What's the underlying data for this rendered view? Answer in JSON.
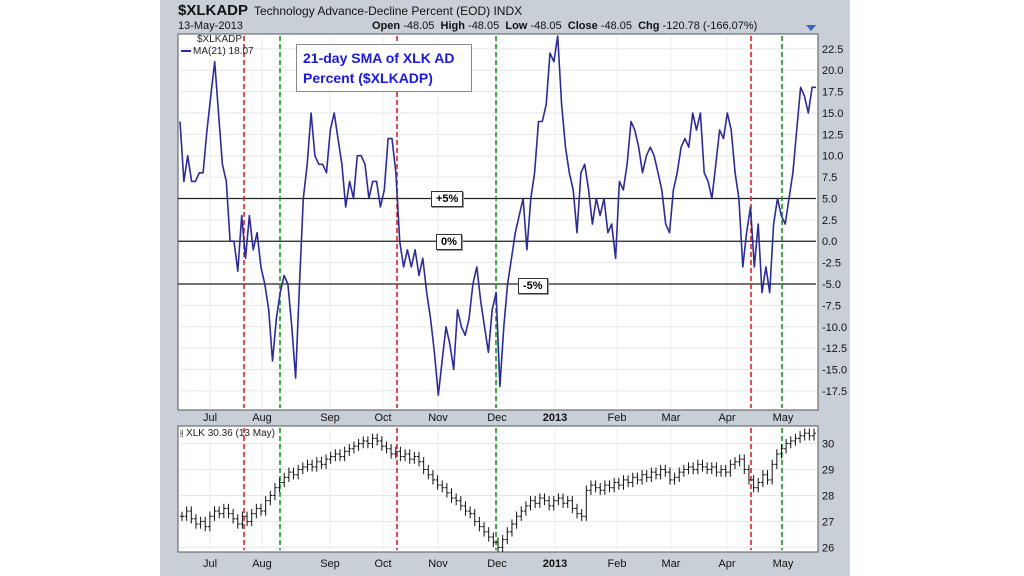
{
  "header": {
    "symbol": "$XLKADP",
    "description": "Technology Advance-Decline Percent (EOD)",
    "exchange": "INDX",
    "date": "13-May-2013",
    "open_label": "Open",
    "open": "-48.05",
    "high_label": "High",
    "high": "-48.05",
    "low_label": "Low",
    "low": "-48.05",
    "close_label": "Close",
    "close": "-48.05",
    "chg_label": "Chg",
    "chg": "-120.78 (-166.07%)"
  },
  "annotation": {
    "line1": "21-day SMA of XLK AD",
    "line2": "Percent ($XLKADP)"
  },
  "legend": {
    "main_symbol": "$XLKADP",
    "main_series": "MA(21) 18.07",
    "lower_series": "XLK 30.36 (13 May)"
  },
  "colors": {
    "line": "#2b2b9a",
    "red_marker": "#e02020",
    "green_marker": "#1a9a1a",
    "panel_bg": "#ffffff",
    "frame": "#c9cfd6"
  },
  "chart_data": [
    {
      "type": "line",
      "name": "upper",
      "x_ticks": [
        "Jul",
        "Aug",
        "Sep",
        "Oct",
        "Nov",
        "Dec",
        "2013",
        "Feb",
        "Mar",
        "Apr",
        "May"
      ],
      "y_ticks": [
        "22.5",
        "20.0",
        "17.5",
        "15.0",
        "12.5",
        "10.0",
        "7.5",
        "5.0",
        "2.5",
        "0.0",
        "-2.5",
        "-5.0",
        "-7.5",
        "-10.0",
        "-12.5",
        "-15.0",
        "-17.5"
      ],
      "ylim": [
        -19.5,
        24.0
      ],
      "reference_lines": [
        {
          "value": 5,
          "label": "+5%"
        },
        {
          "value": 0,
          "label": "0%"
        },
        {
          "value": -5,
          "label": "-5%"
        }
      ],
      "series": [
        {
          "name": "MA(21) 18.07",
          "values": [
            14,
            7,
            10,
            7,
            7,
            8,
            8,
            13,
            17,
            21,
            15,
            9,
            7,
            0,
            0,
            -3.5,
            3,
            -2,
            3,
            -1,
            1,
            -3,
            -5,
            -8,
            -14,
            -9,
            -6,
            -4,
            -5,
            -10,
            -16,
            -5,
            5,
            9,
            15,
            10,
            9,
            9,
            8,
            13,
            15,
            12,
            9,
            4,
            7,
            5,
            10,
            10,
            9,
            5,
            7,
            7,
            4,
            6,
            12,
            12,
            8,
            0,
            -3,
            -1,
            -3,
            -1,
            -4,
            -2,
            -6,
            -9,
            -13,
            -18,
            -14,
            -10,
            -12,
            -15,
            -8,
            -10,
            -11,
            -9,
            -5,
            -3,
            -7,
            -10,
            -13,
            -8,
            -6,
            -17,
            -10,
            -5,
            -2,
            1,
            3,
            5,
            -1,
            5,
            8,
            14,
            14,
            16,
            22,
            21,
            24,
            16,
            11,
            8,
            6,
            1,
            8,
            9,
            6,
            2,
            5,
            3,
            5,
            1,
            2,
            -2,
            7,
            6,
            9,
            14,
            13,
            11,
            8,
            10,
            11,
            10,
            8,
            6,
            2,
            1,
            6,
            8,
            11,
            12,
            11,
            15,
            13,
            15,
            8,
            7,
            5,
            9,
            13,
            12,
            15,
            13,
            8,
            5,
            -3,
            1,
            4,
            -3,
            2,
            -6,
            -3,
            -6,
            2,
            5,
            3,
            2,
            5,
            8,
            13,
            18,
            17,
            15,
            18,
            18
          ]
        }
      ]
    },
    {
      "type": "ohlc",
      "name": "lower",
      "x_ticks": [
        "Jul",
        "Aug",
        "Sep",
        "Oct",
        "Nov",
        "Dec",
        "2013",
        "Feb",
        "Mar",
        "Apr",
        "May"
      ],
      "y_ticks": [
        "30",
        "29",
        "28",
        "27",
        "26"
      ],
      "ylim": [
        25.9,
        30.6
      ],
      "series": [
        {
          "name": "XLK 30.36 (13 May)",
          "values": [
            27.2,
            27.4,
            27.1,
            26.9,
            27.0,
            26.8,
            27.2,
            27.4,
            27.3,
            27.5,
            27.3,
            27.1,
            26.9,
            27.2,
            27.0,
            27.3,
            27.5,
            27.4,
            27.8,
            28.0,
            28.3,
            28.5,
            28.7,
            28.9,
            28.8,
            29.0,
            29.1,
            29.2,
            29.1,
            29.3,
            29.2,
            29.4,
            29.5,
            29.6,
            29.5,
            29.7,
            29.8,
            29.9,
            30.0,
            30.1,
            30.0,
            30.2,
            30.1,
            29.9,
            29.8,
            29.6,
            29.7,
            29.5,
            29.6,
            29.4,
            29.5,
            29.3,
            29.0,
            28.8,
            28.6,
            28.4,
            28.3,
            28.1,
            27.9,
            27.8,
            27.6,
            27.4,
            27.3,
            27.0,
            26.8,
            26.6,
            26.4,
            26.2,
            26.0,
            26.3,
            26.6,
            26.9,
            27.2,
            27.4,
            27.6,
            27.8,
            27.7,
            27.9,
            27.8,
            27.6,
            27.8,
            27.9,
            27.7,
            27.8,
            27.5,
            27.3,
            27.2,
            28.2,
            28.4,
            28.3,
            28.2,
            28.4,
            28.3,
            28.5,
            28.4,
            28.6,
            28.5,
            28.7,
            28.6,
            28.8,
            28.7,
            28.9,
            28.8,
            29.0,
            28.9,
            28.6,
            28.7,
            28.9,
            29.0,
            29.1,
            29.0,
            29.2,
            29.1,
            29.0,
            29.1,
            28.9,
            29.0,
            28.9,
            29.2,
            29.3,
            29.4,
            29.0,
            28.6,
            28.3,
            28.5,
            28.8,
            28.6,
            29.2,
            29.6,
            29.8,
            30.0,
            30.1,
            30.2,
            30.3,
            30.4,
            30.3,
            30.4
          ]
        }
      ]
    }
  ],
  "event_markers": {
    "red_dates_x": [
      244,
      397,
      751
    ],
    "green_dates_x": [
      280,
      496,
      782
    ]
  }
}
